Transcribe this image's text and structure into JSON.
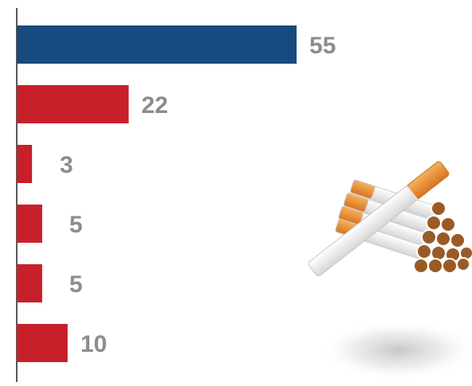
{
  "chart_data": {
    "type": "bar",
    "orientation": "horizontal",
    "values": [
      55,
      22,
      3,
      5,
      5,
      10
    ],
    "data_labels": [
      "55",
      "22",
      "3",
      "5",
      "5",
      "10"
    ],
    "bar_colors": [
      "#174a7e",
      "#c8202b",
      "#c8202b",
      "#c8202b",
      "#c8202b",
      "#c8202b"
    ],
    "label_color": "#8c8c8c",
    "axis_color": "#222222",
    "xlim": [
      0,
      55
    ],
    "grid": false,
    "legend": "none"
  },
  "decoration": {
    "illustration": "cigarettes-icon"
  }
}
